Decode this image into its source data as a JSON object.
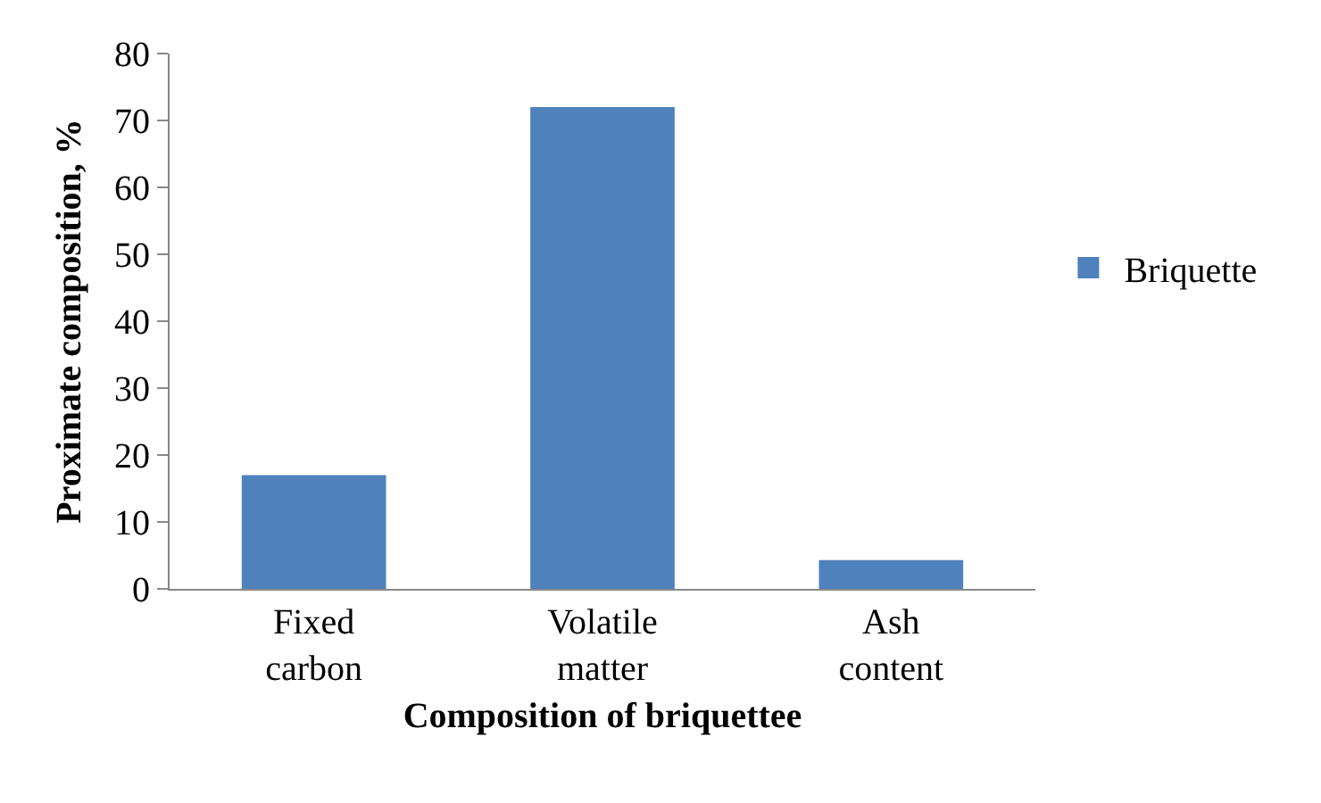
{
  "chart_data": {
    "type": "bar",
    "xlabel": "Composition of briquettee",
    "ylabel": "Proximate composition, %",
    "categories": [
      "Fixed carbon",
      "Volatile matter",
      "Ash content"
    ],
    "series": [
      {
        "name": "Briquette",
        "color": "#4f81bd",
        "values": [
          17,
          72,
          4.3
        ]
      }
    ],
    "ylim": [
      0,
      80
    ],
    "yticks": [
      0,
      10,
      20,
      30,
      40,
      50,
      60,
      70,
      80
    ],
    "grid": false,
    "legend": "right"
  }
}
